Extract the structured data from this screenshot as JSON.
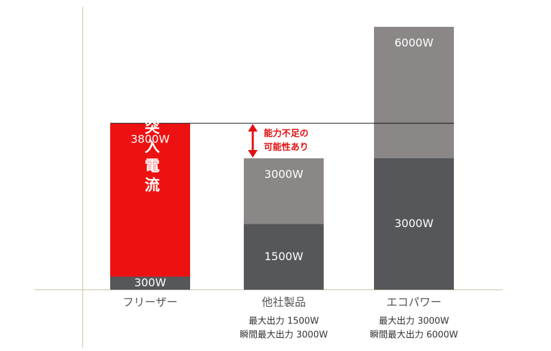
{
  "chart_data": {
    "type": "bar",
    "categories": [
      "フリーザー",
      "他社製品",
      "エコパワー"
    ],
    "category_notes": [
      [],
      [
        "最大出力 1500W",
        "瞬間最大出力 3000W"
      ],
      [
        "最大出力 3000W",
        "瞬間最大出力 6000W"
      ]
    ],
    "series": [
      {
        "color": [
          "#ee1111",
          "#8c8787",
          "#8c8787"
        ],
        "values": [
          3800,
          3000,
          6000
        ],
        "value_labels": [
          "3800W",
          "3000W",
          "6000W"
        ]
      },
      {
        "color": "#56575a",
        "values": [
          300,
          1500,
          3000
        ],
        "value_labels": [
          "300W",
          "1500W",
          "3000W"
        ]
      }
    ],
    "ylim": [
      0,
      6000
    ],
    "reference_line": 3800,
    "annotations": {
      "inrush": "突入電流",
      "shortfall": [
        "能力不足の",
        "可能性あり"
      ]
    }
  }
}
